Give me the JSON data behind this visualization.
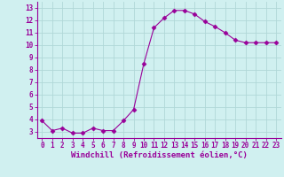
{
  "x": [
    0,
    1,
    2,
    3,
    4,
    5,
    6,
    7,
    8,
    9,
    10,
    11,
    12,
    13,
    14,
    15,
    16,
    17,
    18,
    19,
    20,
    21,
    22,
    23
  ],
  "y": [
    3.9,
    3.1,
    3.3,
    2.9,
    2.9,
    3.3,
    3.1,
    3.1,
    3.9,
    4.8,
    8.5,
    11.4,
    12.2,
    12.8,
    12.8,
    12.5,
    11.9,
    11.5,
    11.0,
    10.4,
    10.2,
    10.2,
    10.2,
    10.2
  ],
  "line_color": "#990099",
  "marker": "D",
  "marker_size": 2.5,
  "background_color": "#d0f0f0",
  "grid_color": "#b0d8d8",
  "xlabel": "Windchill (Refroidissement éolien,°C)",
  "xlabel_fontsize": 6.5,
  "tick_fontsize": 5.5,
  "ylim": [
    2.5,
    13.5
  ],
  "xlim": [
    -0.5,
    23.5
  ],
  "yticks": [
    3,
    4,
    5,
    6,
    7,
    8,
    9,
    10,
    11,
    12,
    13
  ],
  "xticks": [
    0,
    1,
    2,
    3,
    4,
    5,
    6,
    7,
    8,
    9,
    10,
    11,
    12,
    13,
    14,
    15,
    16,
    17,
    18,
    19,
    20,
    21,
    22,
    23
  ]
}
